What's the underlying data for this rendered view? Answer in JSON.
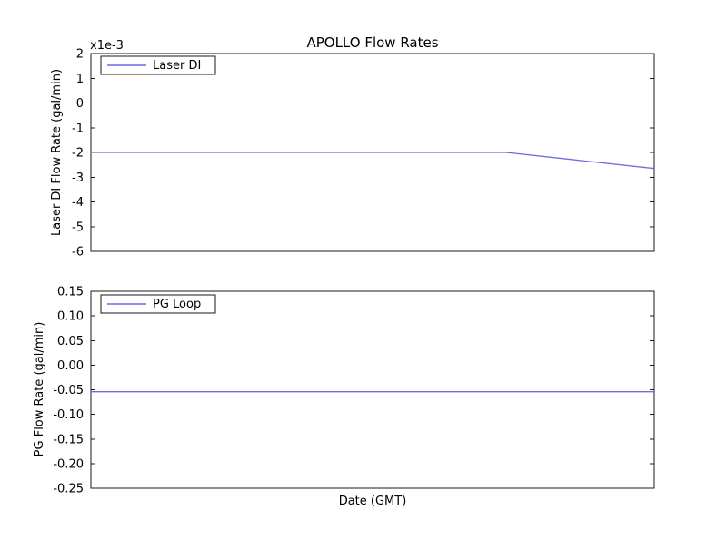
{
  "figure": {
    "background": "#ffffff",
    "axes_edge_color": "#1a1a1a",
    "text_color": "#000000"
  },
  "chart_data": [
    {
      "type": "line",
      "title": "APOLLO Flow Rates",
      "ylabel": "Laser DI Flow Rate (gal/min)",
      "offset_text": "x1e-3",
      "ylim": [
        -6,
        2
      ],
      "yticks": [
        "2",
        "1",
        "0",
        "-1",
        "-2",
        "-3",
        "-4",
        "-5",
        "-6"
      ],
      "xticks": [],
      "grid": false,
      "legend": {
        "position": "upper-left",
        "entries": [
          "Laser DI"
        ]
      },
      "series": [
        {
          "name": "Laser DI",
          "color": "#6b6be4",
          "x": [
            0,
            0.737,
            1
          ],
          "y": [
            -2,
            -2,
            -2.65
          ]
        }
      ]
    },
    {
      "type": "line",
      "title": "",
      "ylabel": "PG Flow Rate (gal/min)",
      "xlabel": "Date (GMT)",
      "offset_text": "",
      "ylim": [
        -0.25,
        0.15
      ],
      "yticks": [
        "0.15",
        "0.10",
        "0.05",
        "0.00",
        "-0.05",
        "-0.10",
        "-0.15",
        "-0.20",
        "-0.25"
      ],
      "xticks": [],
      "grid": false,
      "legend": {
        "position": "upper-left",
        "entries": [
          "PG Loop"
        ]
      },
      "series": [
        {
          "name": "PG Loop",
          "color": "#6b6be4",
          "x": [
            0,
            1
          ],
          "y": [
            -0.054,
            -0.054
          ]
        }
      ]
    }
  ]
}
